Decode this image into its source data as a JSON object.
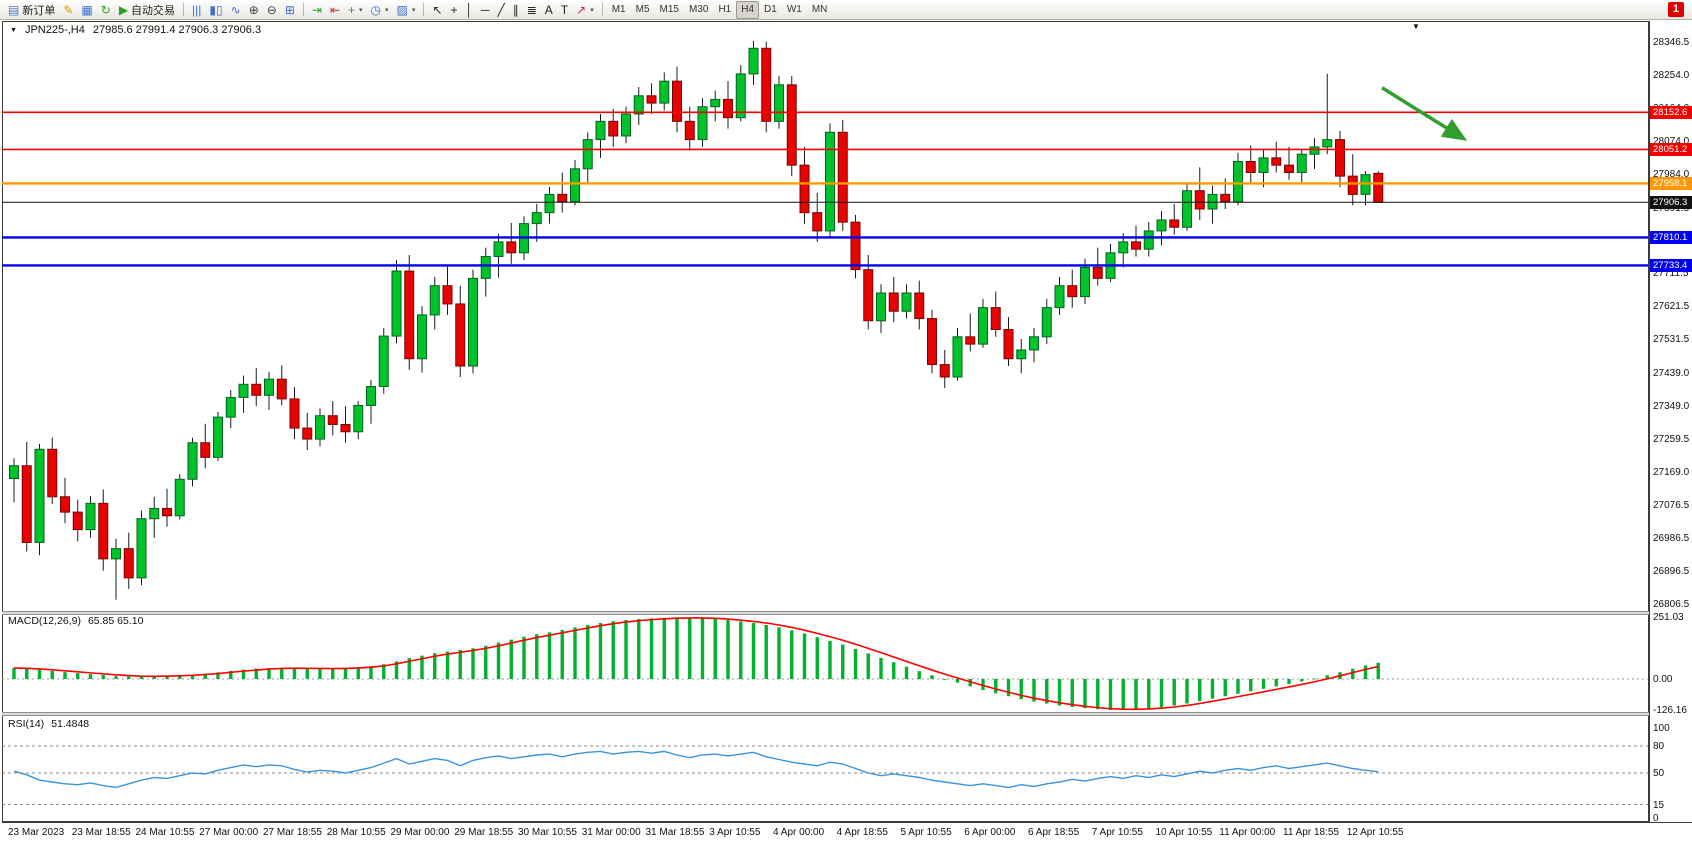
{
  "toolbar": {
    "notification": "1",
    "groups": [
      {
        "items": [
          {
            "name": "new-order-button",
            "icon": "new-order-icon",
            "glyph": "▤",
            "color": "#4a7cc8",
            "label": "新订单"
          },
          {
            "name": "metaeditor-button",
            "icon": "metaeditor-icon",
            "glyph": "✎",
            "color": "#d9a300"
          },
          {
            "name": "market-watch-button",
            "icon": "market-watch-icon",
            "glyph": "▦",
            "color": "#3a6ed0"
          },
          {
            "name": "refresh-button",
            "icon": "refresh-icon",
            "glyph": "↻",
            "color": "#28a428"
          },
          {
            "name": "autotrading-button",
            "icon": "autotrading-play-icon",
            "glyph": "▶",
            "color": "#28a428",
            "label": "自动交易"
          }
        ]
      },
      {
        "items": [
          {
            "name": "chart-bars-button",
            "icon": "bar-chart-icon",
            "glyph": "|||",
            "color": "#3a6ed0"
          },
          {
            "name": "chart-candles-button",
            "icon": "candlestick-icon",
            "glyph": "▮▯",
            "color": "#3a6ed0"
          },
          {
            "name": "chart-line-button",
            "icon": "line-chart-icon",
            "glyph": "∿",
            "color": "#3a6ed0"
          },
          {
            "name": "zoom-in-button",
            "icon": "zoom-in-icon",
            "glyph": "⊕",
            "color": "#444444"
          },
          {
            "name": "zoom-out-button",
            "icon": "zoom-out-icon",
            "glyph": "⊖",
            "color": "#444444"
          },
          {
            "name": "tile-windows-button",
            "icon": "tile-windows-icon",
            "glyph": "⊞",
            "color": "#3a6ed0"
          }
        ]
      },
      {
        "items": [
          {
            "name": "auto-scroll-button",
            "icon": "auto-scroll-icon",
            "glyph": "⇥",
            "color": "#28a428"
          },
          {
            "name": "chart-shift-button",
            "icon": "chart-shift-icon",
            "glyph": "⇤",
            "color": "#c03030"
          },
          {
            "name": "new-chart-button",
            "icon": "new-chart-icon",
            "glyph": "+",
            "color": "#28a428",
            "dropdown": true
          },
          {
            "name": "profiles-button",
            "icon": "profiles-icon",
            "glyph": "◷",
            "color": "#3a6ed0",
            "dropdown": true
          },
          {
            "name": "templates-button",
            "icon": "templates-icon",
            "glyph": "▨",
            "color": "#3a6ed0",
            "dropdown": true
          }
        ]
      },
      {
        "items": [
          {
            "name": "cursor-button",
            "icon": "cursor-icon",
            "glyph": "↖",
            "color": "#222222"
          },
          {
            "name": "crosshair-button",
            "icon": "crosshair-icon",
            "glyph": "+",
            "color": "#222222"
          },
          {
            "name": "vertical-line-button",
            "icon": "vertical-line-icon",
            "glyph": "│",
            "color": "#222222"
          },
          {
            "name": "horizontal-line-button",
            "icon": "horizontal-line-icon",
            "glyph": "─",
            "color": "#222222"
          },
          {
            "name": "trendline-button",
            "icon": "trendline-icon",
            "glyph": "╱",
            "color": "#222222"
          },
          {
            "name": "channel-button",
            "icon": "channel-icon",
            "glyph": "∥",
            "color": "#222222"
          },
          {
            "name": "fibonacci-button",
            "icon": "fibonacci-icon",
            "glyph": "≣",
            "color": "#222222"
          },
          {
            "name": "text-button",
            "icon": "text-icon",
            "glyph": "A",
            "color": "#222222"
          },
          {
            "name": "text-label-button",
            "icon": "text-label-icon",
            "glyph": "T",
            "color": "#222222"
          },
          {
            "name": "arrows-button",
            "icon": "arrow-object-icon",
            "glyph": "↗",
            "color": "#c03030",
            "dropdown": true
          }
        ]
      }
    ],
    "timeframes": {
      "options": [
        "M1",
        "M5",
        "M15",
        "M30",
        "H1",
        "H4",
        "D1",
        "W1",
        "MN"
      ],
      "active": "H4"
    }
  },
  "chart": {
    "info": {
      "title": "JPN225-,H4",
      "ohlc": "27985.6 27991.4 27906.3 27906.3"
    },
    "colors": {
      "bull": "#00c22a",
      "bear": "#e60400",
      "wick": "#1c1c1c",
      "macd_hist": "#00b22d",
      "macd_signal": "#ff0000",
      "rsi": "#3a93dd",
      "arrow": "#2f9e2f"
    },
    "price_ticks": [
      "28346.5",
      "28254.0",
      "28164.0",
      "28074.0",
      "27984.0",
      "27891.5",
      "27801.5",
      "27711.5",
      "27621.5",
      "27531.5",
      "27439.0",
      "27349.0",
      "27259.5",
      "27169.0",
      "27076.5",
      "26986.5",
      "26896.5",
      "26806.5"
    ],
    "hlines": [
      {
        "price": 28152.6,
        "label": "28152.6",
        "color": "#f40000",
        "width": 1.6
      },
      {
        "price": 28051.2,
        "label": "28051.2",
        "color": "#f40000",
        "width": 1.6
      },
      {
        "price": 27958.1,
        "label": "27958.1",
        "color": "#ff9800",
        "width": 2.4
      },
      {
        "price": 27810.1,
        "label": "27810.1",
        "color": "#0000f0",
        "width": 2.4
      },
      {
        "price": 27733.4,
        "label": "27733.4",
        "color": "#0000f0",
        "width": 2.4
      }
    ],
    "current_price": "27906.3",
    "arrow": {
      "from_index": 107.3,
      "from_price": 28220,
      "to_index": 113.5,
      "to_price": 28085,
      "color": "#2f9e2f"
    }
  },
  "macd": {
    "title": "MACD(12,26,9)",
    "values": "65.85 65.10",
    "axis": [
      "251.03",
      "0.00",
      "-126.16"
    ]
  },
  "rsi": {
    "title": "RSI(14)",
    "value": "51.4848",
    "axis": [
      "100",
      "80",
      "50",
      "15",
      "0"
    ],
    "levels": [
      80,
      50,
      15
    ]
  },
  "chart_data": {
    "type": "candlestick",
    "symbol": "JPN225-",
    "period": "H4",
    "price_range": [
      26790,
      28400
    ],
    "macd_range": [
      -140,
      270
    ],
    "label_every_n_candles": 5,
    "time_labels": [
      "23 Mar 2023",
      "23 Mar 18:55",
      "24 Mar 10:55",
      "27 Mar 00:00",
      "27 Mar 18:55",
      "28 Mar 10:55",
      "29 Mar 00:00",
      "29 Mar 18:55",
      "30 Mar 10:55",
      "31 Mar 00:00",
      "31 Mar 18:55",
      "3 Apr 10:55",
      "4 Apr 00:00",
      "4 Apr 18:55",
      "5 Apr 10:55",
      "6 Apr 00:00",
      "6 Apr 18:55",
      "7 Apr 10:55",
      "10 Apr 10:55",
      "11 Apr 00:00",
      "11 Apr 18:55",
      "12 Apr 10:55"
    ],
    "candles": [
      [
        27150,
        27205,
        27085,
        27185
      ],
      [
        27185,
        27250,
        26950,
        26975
      ],
      [
        26975,
        27245,
        26940,
        27230
      ],
      [
        27230,
        27262,
        27080,
        27100
      ],
      [
        27100,
        27152,
        27028,
        27058
      ],
      [
        27058,
        27092,
        26978,
        27010
      ],
      [
        27010,
        27102,
        26988,
        27082
      ],
      [
        27082,
        27120,
        26898,
        26930
      ],
      [
        26930,
        26985,
        26818,
        26958
      ],
      [
        26958,
        27002,
        26848,
        26878
      ],
      [
        26878,
        27062,
        26858,
        27040
      ],
      [
        27040,
        27100,
        26988,
        27068
      ],
      [
        27068,
        27122,
        27018,
        27048
      ],
      [
        27048,
        27162,
        27038,
        27148
      ],
      [
        27148,
        27262,
        27128,
        27248
      ],
      [
        27248,
        27300,
        27178,
        27208
      ],
      [
        27208,
        27332,
        27198,
        27318
      ],
      [
        27318,
        27392,
        27288,
        27372
      ],
      [
        27372,
        27432,
        27330,
        27408
      ],
      [
        27408,
        27452,
        27348,
        27378
      ],
      [
        27378,
        27442,
        27338,
        27422
      ],
      [
        27422,
        27460,
        27350,
        27368
      ],
      [
        27368,
        27400,
        27258,
        27288
      ],
      [
        27288,
        27330,
        27228,
        27258
      ],
      [
        27258,
        27342,
        27238,
        27322
      ],
      [
        27322,
        27362,
        27268,
        27298
      ],
      [
        27298,
        27348,
        27248,
        27278
      ],
      [
        27278,
        27362,
        27258,
        27350
      ],
      [
        27350,
        27420,
        27300,
        27402
      ],
      [
        27402,
        27562,
        27382,
        27540
      ],
      [
        27540,
        27748,
        27520,
        27718
      ],
      [
        27718,
        27762,
        27448,
        27478
      ],
      [
        27478,
        27622,
        27440,
        27598
      ],
      [
        27598,
        27702,
        27558,
        27678
      ],
      [
        27678,
        27730,
        27598,
        27628
      ],
      [
        27628,
        27678,
        27428,
        27458
      ],
      [
        27458,
        27722,
        27438,
        27698
      ],
      [
        27698,
        27782,
        27648,
        27758
      ],
      [
        27758,
        27820,
        27700,
        27798
      ],
      [
        27798,
        27850,
        27738,
        27768
      ],
      [
        27768,
        27868,
        27748,
        27848
      ],
      [
        27848,
        27902,
        27798,
        27878
      ],
      [
        27878,
        27948,
        27848,
        27928
      ],
      [
        27928,
        27988,
        27878,
        27908
      ],
      [
        27908,
        28022,
        27898,
        27998
      ],
      [
        27998,
        28098,
        27958,
        28078
      ],
      [
        28078,
        28148,
        28028,
        28128
      ],
      [
        28128,
        28162,
        28058,
        28088
      ],
      [
        28088,
        28168,
        28068,
        28148
      ],
      [
        28148,
        28222,
        28118,
        28198
      ],
      [
        28198,
        28232,
        28148,
        28178
      ],
      [
        28178,
        28262,
        28158,
        28238
      ],
      [
        28238,
        28278,
        28098,
        28128
      ],
      [
        28128,
        28168,
        28048,
        28078
      ],
      [
        28078,
        28192,
        28058,
        28168
      ],
      [
        28168,
        28212,
        28128,
        28188
      ],
      [
        28188,
        28238,
        28108,
        28138
      ],
      [
        28138,
        28282,
        28128,
        28258
      ],
      [
        28258,
        28348,
        28228,
        28328
      ],
      [
        28328,
        28346,
        28098,
        28128
      ],
      [
        28128,
        28252,
        28108,
        28228
      ],
      [
        28228,
        28252,
        27978,
        28008
      ],
      [
        28008,
        28058,
        27848,
        27878
      ],
      [
        27878,
        27932,
        27798,
        27828
      ],
      [
        27828,
        28122,
        27808,
        28098
      ],
      [
        28098,
        28132,
        27828,
        27852
      ],
      [
        27852,
        27872,
        27698,
        27722
      ],
      [
        27722,
        27762,
        27558,
        27582
      ],
      [
        27582,
        27682,
        27548,
        27658
      ],
      [
        27658,
        27702,
        27578,
        27608
      ],
      [
        27608,
        27682,
        27588,
        27658
      ],
      [
        27658,
        27692,
        27558,
        27588
      ],
      [
        27588,
        27612,
        27438,
        27462
      ],
      [
        27462,
        27502,
        27398,
        27428
      ],
      [
        27428,
        27562,
        27418,
        27538
      ],
      [
        27538,
        27602,
        27498,
        27518
      ],
      [
        27518,
        27642,
        27508,
        27618
      ],
      [
        27618,
        27662,
        27538,
        27558
      ],
      [
        27558,
        27592,
        27458,
        27478
      ],
      [
        27478,
        27532,
        27438,
        27502
      ],
      [
        27502,
        27562,
        27468,
        27538
      ],
      [
        27538,
        27642,
        27518,
        27618
      ],
      [
        27618,
        27702,
        27598,
        27678
      ],
      [
        27678,
        27722,
        27618,
        27648
      ],
      [
        27648,
        27752,
        27628,
        27728
      ],
      [
        27728,
        27782,
        27678,
        27698
      ],
      [
        27698,
        27792,
        27688,
        27768
      ],
      [
        27768,
        27822,
        27728,
        27798
      ],
      [
        27798,
        27842,
        27758,
        27778
      ],
      [
        27778,
        27852,
        27758,
        27828
      ],
      [
        27828,
        27882,
        27788,
        27858
      ],
      [
        27858,
        27902,
        27818,
        27838
      ],
      [
        27838,
        27962,
        27828,
        27938
      ],
      [
        27938,
        28002,
        27858,
        27888
      ],
      [
        27888,
        27952,
        27848,
        27928
      ],
      [
        27928,
        27972,
        27888,
        27908
      ],
      [
        27908,
        28042,
        27898,
        28018
      ],
      [
        28018,
        28062,
        27958,
        27988
      ],
      [
        27988,
        28052,
        27948,
        28028
      ],
      [
        28028,
        28072,
        27988,
        28008
      ],
      [
        28008,
        28058,
        27968,
        27988
      ],
      [
        27988,
        28052,
        27958,
        28038
      ],
      [
        28038,
        28082,
        27998,
        28058
      ],
      [
        28058,
        28258,
        28038,
        28078
      ],
      [
        28078,
        28102,
        27948,
        27978
      ],
      [
        27978,
        28038,
        27898,
        27928
      ],
      [
        27928,
        27992,
        27898,
        27982
      ],
      [
        27985.6,
        27991.4,
        27906.3,
        27906.3
      ]
    ],
    "macd_histogram": [
      45,
      42,
      38,
      33,
      28,
      24,
      20,
      16,
      12,
      10,
      9,
      10,
      12,
      15,
      18,
      22,
      27,
      33,
      38,
      42,
      45,
      46,
      45,
      43,
      42,
      42,
      44,
      47,
      52,
      60,
      72,
      85,
      95,
      105,
      112,
      118,
      125,
      135,
      148,
      160,
      172,
      182,
      190,
      200,
      210,
      220,
      228,
      235,
      240,
      244,
      247,
      249,
      251,
      250,
      248,
      245,
      240,
      234,
      228,
      220,
      210,
      198,
      185,
      170,
      155,
      140,
      122,
      104,
      86,
      68,
      50,
      32,
      15,
      0,
      -15,
      -30,
      -45,
      -58,
      -70,
      -82,
      -92,
      -100,
      -108,
      -114,
      -119,
      -123,
      -126,
      -126,
      -124,
      -120,
      -115,
      -108,
      -100,
      -90,
      -80,
      -70,
      -60,
      -50,
      -40,
      -30,
      -20,
      -10,
      2,
      15,
      28,
      42,
      55,
      66
    ],
    "rsi": [
      52,
      48,
      42,
      40,
      38,
      37,
      39,
      36,
      34,
      38,
      42,
      45,
      44,
      47,
      50,
      49,
      53,
      56,
      59,
      57,
      59,
      58,
      54,
      51,
      53,
      52,
      50,
      53,
      56,
      61,
      66,
      60,
      63,
      66,
      64,
      58,
      64,
      67,
      69,
      66,
      68,
      70,
      71,
      68,
      71,
      73,
      74,
      71,
      73,
      74,
      72,
      74,
      70,
      67,
      70,
      71,
      69,
      71,
      73,
      68,
      65,
      62,
      60,
      58,
      62,
      60,
      55,
      50,
      47,
      49,
      47,
      45,
      42,
      40,
      38,
      36,
      38,
      36,
      34,
      37,
      35,
      38,
      40,
      43,
      41,
      44,
      46,
      44,
      47,
      45,
      48,
      46,
      49,
      52,
      50,
      53,
      55,
      53,
      56,
      58,
      55,
      57,
      59,
      61,
      58,
      55,
      53,
      51.48
    ]
  }
}
